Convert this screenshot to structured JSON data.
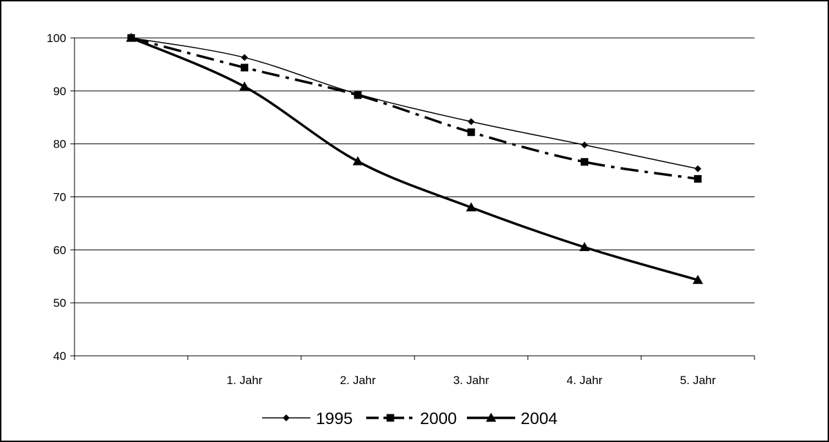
{
  "chart_data": {
    "type": "line",
    "title": "",
    "xlabel": "",
    "ylabel": "",
    "categories": [
      "",
      "1. Jahr",
      "2. Jahr",
      "3. Jahr",
      "4. Jahr",
      "5. Jahr"
    ],
    "ylim": [
      40,
      100
    ],
    "yticks": [
      40,
      50,
      60,
      70,
      80,
      90,
      100
    ],
    "grid": "horizontal",
    "legend_position": "bottom",
    "series": [
      {
        "name": "1995",
        "values": [
          100,
          96.3,
          89.4,
          84.2,
          79.8,
          75.3
        ],
        "color": "#000000",
        "marker": "diamond",
        "line_style": "solid-thin"
      },
      {
        "name": "2000",
        "values": [
          100,
          94.4,
          89.2,
          82.2,
          76.6,
          73.4
        ],
        "color": "#000000",
        "marker": "square",
        "line_style": "dash-dot"
      },
      {
        "name": "2004",
        "values": [
          100,
          90.8,
          76.7,
          68.0,
          60.5,
          54.3
        ],
        "color": "#000000",
        "marker": "triangle",
        "line_style": "solid-thick"
      }
    ]
  }
}
